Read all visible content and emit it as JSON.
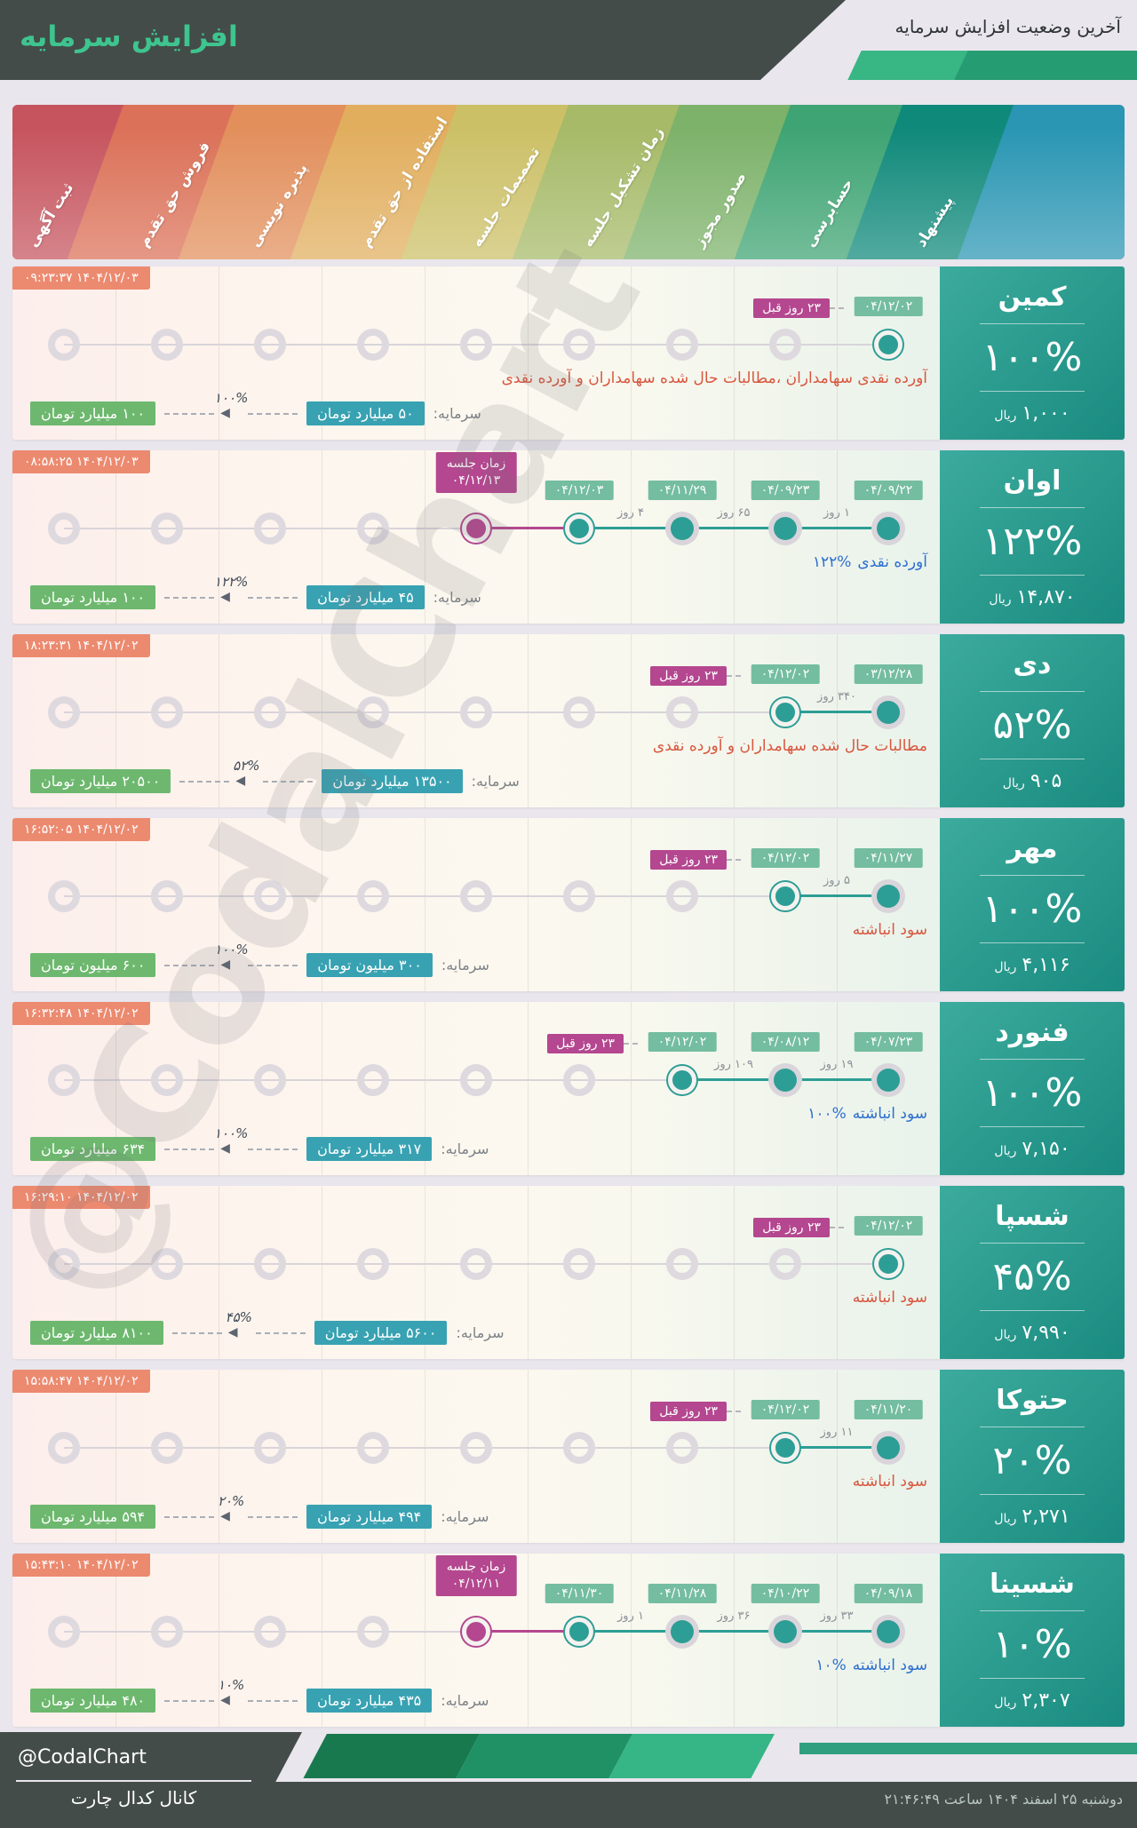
{
  "header": {
    "title": "افزایش سرمایه",
    "subtitle": "آخرین وضعیت افزایش سرمایه"
  },
  "watermark": "@CodalChart",
  "colors": {
    "accent_green": "#3ec48f",
    "header_dark": "#434c48",
    "salmon_badge": "#ec8a70",
    "date_badge": "#74bda0",
    "magenta": "#b4478f",
    "teal_dot": "#2d9e95",
    "capital_from_badge": "#38a2b2",
    "capital_to_badge": "#6db86e",
    "annotation_red": "#d9563e",
    "annotation_blue": "#2e6fd0"
  },
  "stage_banner": {
    "stages": [
      {
        "label": "ثبت آگهی",
        "color": "#c6545e"
      },
      {
        "label": "فروش حق تقدم",
        "color": "#db7158"
      },
      {
        "label": "پذیره نویسی",
        "color": "#e28f5c"
      },
      {
        "label": "استفاده از حق تقدم",
        "color": "#e1ae5e"
      },
      {
        "label": "تصمیمات جلسه",
        "color": "#ccc067"
      },
      {
        "label": "زمان تشکیل جلسه",
        "color": "#a6ba68"
      },
      {
        "label": "صدور مجوز",
        "color": "#7db26a"
      },
      {
        "label": "حسابرسی",
        "color": "#3ea473"
      },
      {
        "label": "پیشنهاد",
        "color": "#0f897a"
      },
      {
        "label": "",
        "color": "#2a96b3"
      }
    ]
  },
  "rows": [
    {
      "company": "کمین",
      "percent": "۱۰۰%",
      "price_value": "۱,۰۰۰",
      "price_unit": "ریال",
      "timestamp": "۱۴۰۴/۱۲/۰۳ ۰۹:۲۳:۳۷",
      "events": [
        {
          "col": 9,
          "date": "۰۴/۱۲/۰۲",
          "style": "current",
          "ago": "۲۳ روز قبل"
        }
      ],
      "gaps": [],
      "annotation": {
        "pct": "",
        "text": "آورده نقدی سهامداران ،مطالبات حال شده سهامداران و آورده نقدی",
        "color": "red"
      },
      "capital": {
        "label": "سرمایه:",
        "from": "۵۰ میلیارد تومان",
        "to": "۱۰۰ میلیارد تومان",
        "pct": "۱۰۰%"
      }
    },
    {
      "company": "اوان",
      "percent": "۱۲۲%",
      "price_value": "۱۴,۸۷۰",
      "price_unit": "ریال",
      "timestamp": "۱۴۰۴/۱۲/۰۳ ۰۸:۵۸:۲۵",
      "events": [
        {
          "col": 5,
          "date": "۰۴/۱۲/۱۳",
          "style": "meeting",
          "label": "زمان جلسه"
        },
        {
          "col": 6,
          "date": "۰۴/۱۲/۰۳",
          "style": "current"
        },
        {
          "col": 7,
          "date": "۰۴/۱۱/۲۹",
          "style": "done"
        },
        {
          "col": 8,
          "date": "۰۴/۰۹/۲۳",
          "style": "done"
        },
        {
          "col": 9,
          "date": "۰۴/۰۹/۲۲",
          "style": "done"
        }
      ],
      "gaps": [
        {
          "a": 6,
          "b": 7,
          "label": "۴ روز"
        },
        {
          "a": 7,
          "b": 8,
          "label": "۶۵ روز"
        },
        {
          "a": 8,
          "b": 9,
          "label": "۱ روز"
        }
      ],
      "annotation": {
        "pct": "۱۲۲%",
        "text": "آورده نقدی",
        "color": "blue"
      },
      "capital": {
        "label": "سرمایه:",
        "from": "۴۵ میلیارد تومان",
        "to": "۱۰۰ میلیارد تومان",
        "pct": "۱۲۲%"
      }
    },
    {
      "company": "دی",
      "percent": "۵۲%",
      "price_value": "۹۰۵",
      "price_unit": "ریال",
      "timestamp": "۱۴۰۴/۱۲/۰۲ ۱۸:۲۳:۳۱",
      "events": [
        {
          "col": 8,
          "date": "۰۴/۱۲/۰۲",
          "style": "current",
          "ago": "۲۳ روز قبل"
        },
        {
          "col": 9,
          "date": "۰۳/۱۲/۲۸",
          "style": "done"
        }
      ],
      "gaps": [
        {
          "a": 8,
          "b": 9,
          "label": "۳۴۰ روز"
        }
      ],
      "annotation": {
        "pct": "",
        "text": "مطالبات حال شده سهامداران و آورده نقدی",
        "color": "red"
      },
      "capital": {
        "label": "سرمایه:",
        "from": "۱۳۵۰۰ میلیارد تومان",
        "to": "۲۰۵۰۰ میلیارد تومان",
        "pct": "۵۲%"
      }
    },
    {
      "company": "مهر",
      "percent": "۱۰۰%",
      "price_value": "۴,۱۱۶",
      "price_unit": "ریال",
      "timestamp": "۱۴۰۴/۱۲/۰۲ ۱۶:۵۲:۰۵",
      "events": [
        {
          "col": 8,
          "date": "۰۴/۱۲/۰۲",
          "style": "current",
          "ago": "۲۳ روز قبل"
        },
        {
          "col": 9,
          "date": "۰۴/۱۱/۲۷",
          "style": "done"
        }
      ],
      "gaps": [
        {
          "a": 8,
          "b": 9,
          "label": "۵ روز"
        }
      ],
      "annotation": {
        "pct": "",
        "text": "سود انباشته",
        "color": "red"
      },
      "capital": {
        "label": "سرمایه:",
        "from": "۳۰۰ میلیون تومان",
        "to": "۶۰۰ میلیون تومان",
        "pct": "۱۰۰%"
      }
    },
    {
      "company": "فنورد",
      "percent": "۱۰۰%",
      "price_value": "۷,۱۵۰",
      "price_unit": "ریال",
      "timestamp": "۱۴۰۴/۱۲/۰۲ ۱۶:۳۲:۴۸",
      "events": [
        {
          "col": 7,
          "date": "۰۴/۱۲/۰۲",
          "style": "current",
          "ago": "۲۳ روز قبل"
        },
        {
          "col": 8,
          "date": "۰۴/۰۸/۱۲",
          "style": "done"
        },
        {
          "col": 9,
          "date": "۰۴/۰۷/۲۳",
          "style": "done"
        }
      ],
      "gaps": [
        {
          "a": 7,
          "b": 8,
          "label": "۱۰۹ روز"
        },
        {
          "a": 8,
          "b": 9,
          "label": "۱۹ روز"
        }
      ],
      "annotation": {
        "pct": "۱۰۰%",
        "text": "سود انباشته",
        "color": "blue"
      },
      "capital": {
        "label": "سرمایه:",
        "from": "۳۱۷ میلیارد تومان",
        "to": "۶۳۴ میلیارد تومان",
        "pct": "۱۰۰%"
      }
    },
    {
      "company": "شسپا",
      "percent": "۴۵%",
      "price_value": "۷,۹۹۰",
      "price_unit": "ریال",
      "timestamp": "۱۴۰۴/۱۲/۰۲ ۱۶:۲۹:۱۰",
      "events": [
        {
          "col": 9,
          "date": "۰۴/۱۲/۰۲",
          "style": "current",
          "ago": "۲۳ روز قبل"
        }
      ],
      "gaps": [],
      "annotation": {
        "pct": "",
        "text": "سود انباشته",
        "color": "red"
      },
      "capital": {
        "label": "سرمایه:",
        "from": "۵۶۰۰ میلیارد تومان",
        "to": "۸۱۰۰ میلیارد تومان",
        "pct": "۴۵%"
      }
    },
    {
      "company": "حتوکا",
      "percent": "۲۰%",
      "price_value": "۲,۲۷۱",
      "price_unit": "ریال",
      "timestamp": "۱۴۰۴/۱۲/۰۲ ۱۵:۵۸:۴۷",
      "events": [
        {
          "col": 8,
          "date": "۰۴/۱۲/۰۲",
          "style": "current",
          "ago": "۲۳ روز قبل"
        },
        {
          "col": 9,
          "date": "۰۴/۱۱/۲۰",
          "style": "done"
        }
      ],
      "gaps": [
        {
          "a": 8,
          "b": 9,
          "label": "۱۱ روز"
        }
      ],
      "annotation": {
        "pct": "",
        "text": "سود انباشته",
        "color": "red"
      },
      "capital": {
        "label": "سرمایه:",
        "from": "۴۹۴ میلیارد تومان",
        "to": "۵۹۴ میلیارد تومان",
        "pct": "۲۰%"
      }
    },
    {
      "company": "شسینا",
      "percent": "۱۰%",
      "price_value": "۲,۳۰۷",
      "price_unit": "ریال",
      "timestamp": "۱۴۰۴/۱۲/۰۲ ۱۵:۴۳:۱۰",
      "events": [
        {
          "col": 5,
          "date": "۰۴/۱۲/۱۱",
          "style": "meeting",
          "label": "زمان جلسه"
        },
        {
          "col": 6,
          "date": "۰۴/۱۱/۳۰",
          "style": "current"
        },
        {
          "col": 7,
          "date": "۰۴/۱۱/۲۸",
          "style": "done"
        },
        {
          "col": 8,
          "date": "۰۴/۱۰/۲۲",
          "style": "done"
        },
        {
          "col": 9,
          "date": "۰۴/۰۹/۱۸",
          "style": "done"
        }
      ],
      "gaps": [
        {
          "a": 6,
          "b": 7,
          "label": "۱ روز"
        },
        {
          "a": 7,
          "b": 8,
          "label": "۳۶ روز"
        },
        {
          "a": 8,
          "b": 9,
          "label": "۳۳ روز"
        }
      ],
      "annotation": {
        "pct": "۱۰%",
        "text": "سود انباشته",
        "color": "blue"
      },
      "capital": {
        "label": "سرمایه:",
        "from": "۴۳۵ میلیارد تومان",
        "to": "۴۸۰ میلیارد تومان",
        "pct": "۱۰%"
      }
    }
  ],
  "footer": {
    "handle": "@CodalChart",
    "channel": "کانال کدال چارت",
    "datetime": "دوشنبه ۲۵ اسفند ۱۴۰۴ ساعت ۲۱:۴۶:۴۹"
  }
}
